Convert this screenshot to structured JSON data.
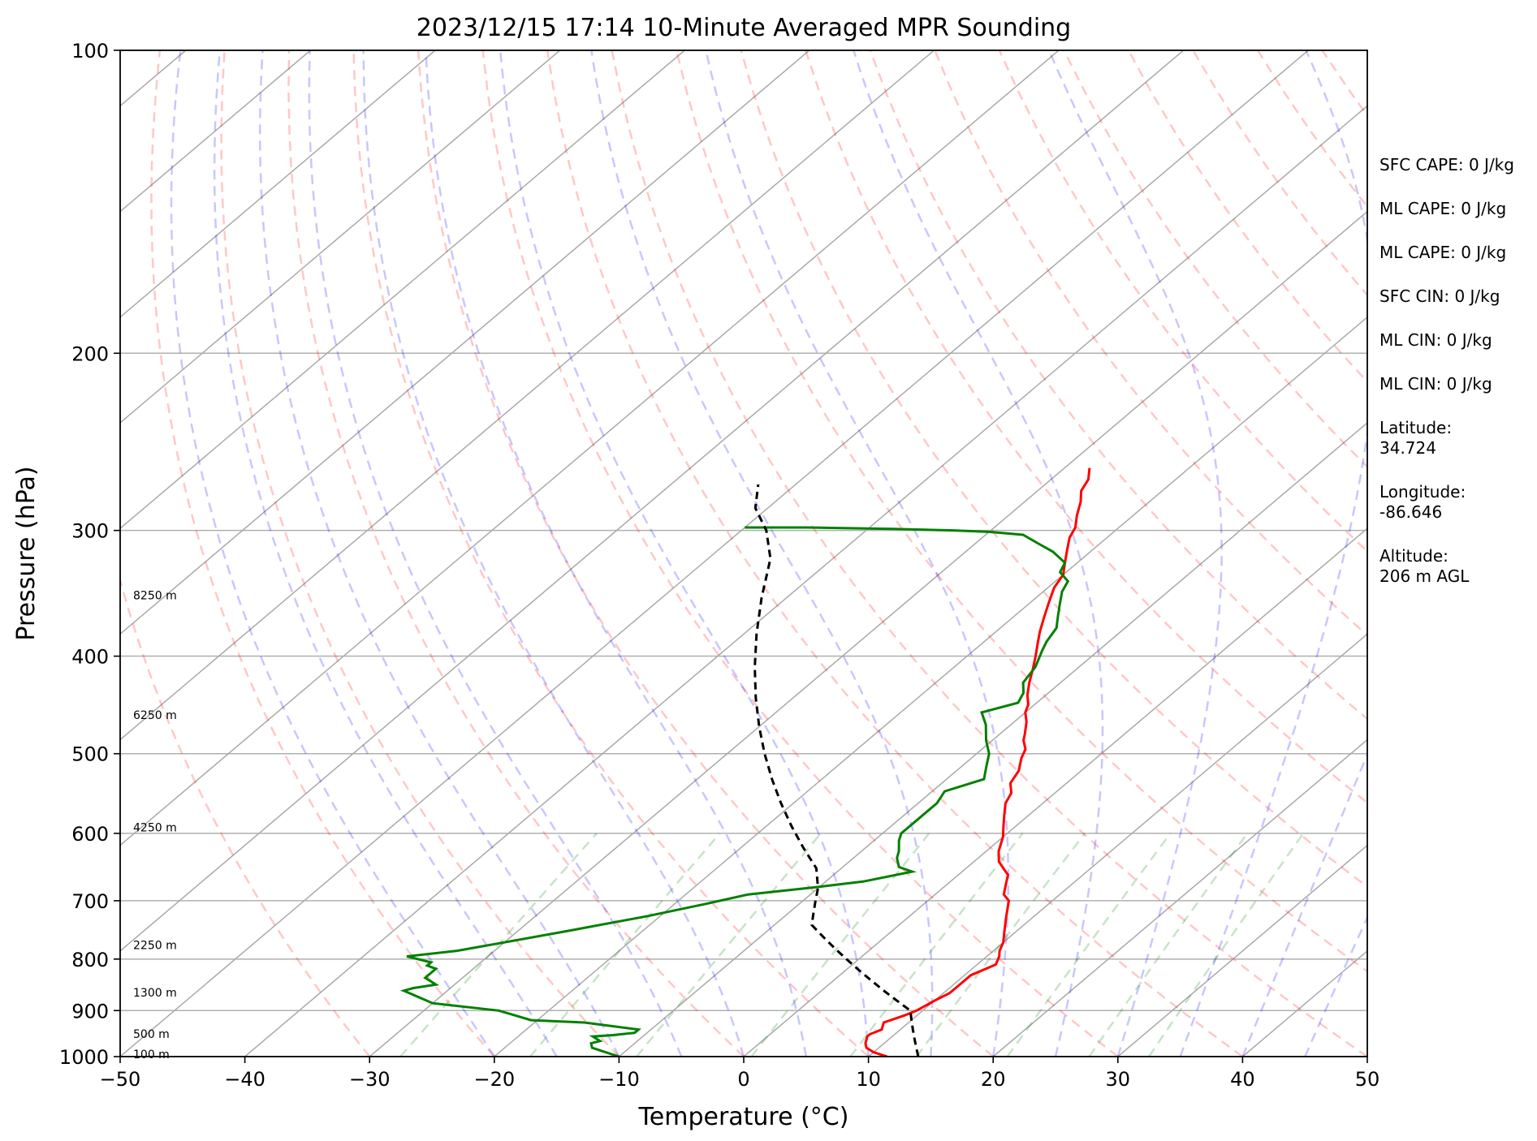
{
  "chart_data": {
    "type": "line",
    "subtype": "skew-t log-p sounding",
    "title": "2023/12/15 17:14 10-Minute Averaged MPR Sounding",
    "xlabel": "Temperature (°C)",
    "ylabel": "Pressure (hPa)",
    "xlim": [
      -50,
      50
    ],
    "ylim": [
      1000,
      100
    ],
    "y_scale": "log",
    "grid": true,
    "x_ticks": [
      "−50",
      "−40",
      "−30",
      "−20",
      "−10",
      "0",
      "10",
      "20",
      "30",
      "40",
      "50"
    ],
    "y_ticks": [
      "100",
      "200",
      "300",
      "400",
      "500",
      "600",
      "700",
      "800",
      "900",
      "1000"
    ],
    "height_labels": [
      {
        "p": 1000,
        "text": "100 m"
      },
      {
        "p": 955,
        "text": "500 m"
      },
      {
        "p": 868,
        "text": "1300 m"
      },
      {
        "p": 779,
        "text": "2250 m"
      },
      {
        "p": 595,
        "text": "4250 m"
      },
      {
        "p": 460,
        "text": "6250 m"
      },
      {
        "p": 350,
        "text": "8250 m"
      }
    ],
    "series": [
      {
        "color": "#ff0000",
        "points": [
          [
            11.5,
            1000
          ],
          [
            10,
            990
          ],
          [
            9,
            980
          ],
          [
            8.5,
            970
          ],
          [
            8,
            955
          ],
          [
            8,
            950
          ],
          [
            8.5,
            940
          ],
          [
            8,
            925
          ],
          [
            9,
            910
          ],
          [
            9.5,
            900
          ],
          [
            10,
            880
          ],
          [
            10.5,
            865
          ],
          [
            10.5,
            850
          ],
          [
            10.5,
            830
          ],
          [
            11,
            820
          ],
          [
            11.5,
            810
          ],
          [
            11,
            795
          ],
          [
            10.5,
            785
          ],
          [
            10,
            770
          ],
          [
            9,
            750
          ],
          [
            8,
            730
          ],
          [
            7.5,
            720
          ],
          [
            7,
            710
          ],
          [
            6.5,
            700
          ],
          [
            5.5,
            690
          ],
          [
            5,
            680
          ],
          [
            4.5,
            670
          ],
          [
            4,
            660
          ],
          [
            3,
            650
          ],
          [
            2,
            640
          ],
          [
            1,
            625
          ],
          [
            0.5,
            615
          ],
          [
            0,
            605
          ],
          [
            -1,
            590
          ],
          [
            -2,
            575
          ],
          [
            -3,
            560
          ],
          [
            -3.5,
            547
          ],
          [
            -4.5,
            535
          ],
          [
            -5,
            520
          ],
          [
            -6,
            505
          ],
          [
            -6.5,
            495
          ],
          [
            -7.5,
            485
          ],
          [
            -8,
            478
          ],
          [
            -9,
            465
          ],
          [
            -10,
            455
          ],
          [
            -10.5,
            447
          ],
          [
            -11.5,
            437
          ],
          [
            -12.5,
            425
          ],
          [
            -13.5,
            412
          ],
          [
            -14.5,
            400
          ],
          [
            -15.5,
            389
          ],
          [
            -16.5,
            378
          ],
          [
            -17.5,
            366
          ],
          [
            -18.5,
            354
          ],
          [
            -19.5,
            342
          ],
          [
            -20,
            332
          ],
          [
            -21,
            323
          ],
          [
            -22,
            314
          ],
          [
            -23,
            305
          ],
          [
            -23.5,
            298
          ],
          [
            -24.5,
            290
          ],
          [
            -25.5,
            281
          ],
          [
            -26.5,
            274
          ],
          [
            -27,
            267
          ],
          [
            -28,
            260
          ]
        ]
      },
      {
        "color": "#008000",
        "points": [
          [
            -10,
            1000
          ],
          [
            -11.5,
            990
          ],
          [
            -13,
            980
          ],
          [
            -13.5,
            970
          ],
          [
            -13,
            965
          ],
          [
            -14,
            955
          ],
          [
            -12.5,
            952
          ],
          [
            -11,
            947
          ],
          [
            -11,
            940
          ],
          [
            -16,
            925
          ],
          [
            -20.5,
            920
          ],
          [
            -24,
            900
          ],
          [
            -30,
            885
          ],
          [
            -33.5,
            860
          ],
          [
            -33,
            855
          ],
          [
            -31.5,
            848
          ],
          [
            -33,
            835
          ],
          [
            -33,
            818
          ],
          [
            -34,
            812
          ],
          [
            -34,
            806
          ],
          [
            -36.5,
            795
          ],
          [
            -33,
            785
          ],
          [
            -30,
            770
          ],
          [
            -26,
            750
          ],
          [
            -21,
            725
          ],
          [
            -17.5,
            705
          ],
          [
            -15,
            690
          ],
          [
            -10,
            678
          ],
          [
            -7,
            670
          ],
          [
            -4,
            655
          ],
          [
            -5.5,
            648
          ],
          [
            -6.5,
            635
          ],
          [
            -7,
            625
          ],
          [
            -8,
            610
          ],
          [
            -8.5,
            600
          ],
          [
            -8.5,
            585
          ],
          [
            -8.5,
            570
          ],
          [
            -8.5,
            560
          ],
          [
            -9,
            545
          ],
          [
            -7,
            530
          ],
          [
            -8,
            515
          ],
          [
            -9,
            500
          ],
          [
            -10.5,
            485
          ],
          [
            -12,
            468
          ],
          [
            -13.5,
            455
          ],
          [
            -11.5,
            445
          ],
          [
            -12,
            435
          ],
          [
            -13,
            425
          ],
          [
            -13.5,
            410
          ],
          [
            -14.5,
            395
          ],
          [
            -15,
            387
          ],
          [
            -15.5,
            375
          ],
          [
            -16.5,
            365
          ],
          [
            -17.5,
            355
          ],
          [
            -18.5,
            345
          ],
          [
            -19,
            337
          ],
          [
            -20.5,
            330
          ],
          [
            -21,
            323
          ],
          [
            -23,
            315
          ],
          [
            -25,
            309
          ],
          [
            -27,
            303
          ],
          [
            -30,
            301
          ],
          [
            -33,
            300
          ],
          [
            -38,
            299
          ],
          [
            -45,
            298
          ],
          [
            -50,
            298
          ]
        ]
      },
      {
        "color": "#000000",
        "dashed": true,
        "points": [
          [
            14,
            1000
          ],
          [
            13,
            980
          ],
          [
            12,
            960
          ],
          [
            11,
            940
          ],
          [
            10,
            920
          ],
          [
            9,
            900
          ],
          [
            7,
            880
          ],
          [
            5,
            860
          ],
          [
            3,
            840
          ],
          [
            1,
            820
          ],
          [
            -1,
            800
          ],
          [
            -3,
            780
          ],
          [
            -5,
            760
          ],
          [
            -7,
            740
          ],
          [
            -8,
            720
          ],
          [
            -9,
            700
          ],
          [
            -10,
            680
          ],
          [
            -12,
            650
          ],
          [
            -15,
            620
          ],
          [
            -18,
            590
          ],
          [
            -21,
            560
          ],
          [
            -24,
            530
          ],
          [
            -27,
            500
          ],
          [
            -30,
            470
          ],
          [
            -33,
            440
          ],
          [
            -36,
            410
          ],
          [
            -39,
            380
          ],
          [
            -42,
            350
          ],
          [
            -45,
            320
          ],
          [
            -48,
            300
          ],
          [
            -51,
            285
          ],
          [
            -53,
            270
          ]
        ]
      }
    ],
    "side_text": [
      "SFC CAPE: 0 J/kg",
      "ML CAPE: 0 J/kg",
      "ML CAPE: 0 J/kg",
      "SFC CIN: 0 J/kg",
      "ML CIN: 0 J/kg",
      "ML CIN: 0 J/kg",
      "Latitude:\n34.724",
      "Longitude:\n-86.646",
      "Altitude:\n206 m AGL"
    ]
  }
}
